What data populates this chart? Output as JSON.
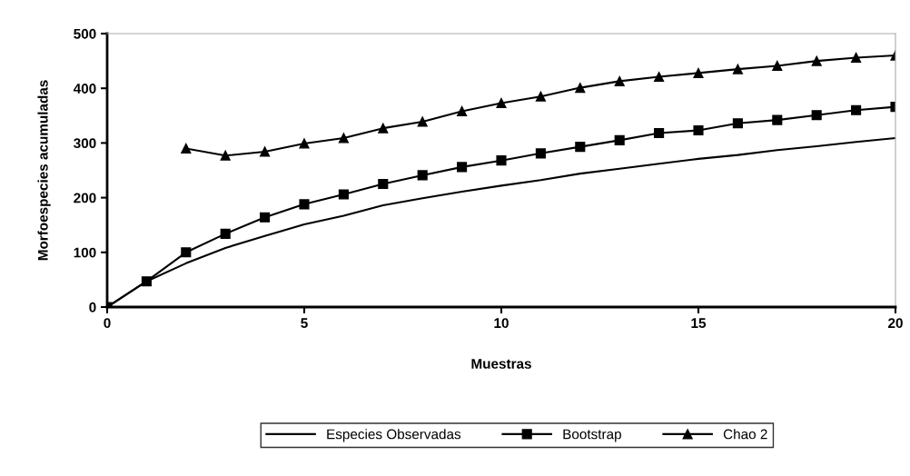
{
  "chart_data": {
    "type": "line",
    "xlabel": "Muestras",
    "ylabel": "Morfoespecies acumuladas",
    "x": [
      0,
      1,
      2,
      3,
      4,
      5,
      6,
      7,
      8,
      9,
      10,
      11,
      12,
      13,
      14,
      15,
      16,
      17,
      18,
      19,
      20
    ],
    "series": [
      {
        "name": "Especies Observadas",
        "color": "#000000",
        "marker": "none",
        "values": [
          0,
          47,
          80,
          108,
          130,
          151,
          167,
          186,
          199,
          211,
          222,
          232,
          244,
          253,
          262,
          271,
          278,
          287,
          294,
          302,
          309
        ]
      },
      {
        "name": "Bootstrap",
        "color": "#000000",
        "marker": "square",
        "values": [
          0,
          47,
          100,
          134,
          164,
          188,
          206,
          225,
          241,
          256,
          268,
          281,
          293,
          305,
          318,
          323,
          336,
          342,
          351,
          360,
          366
        ]
      },
      {
        "name": "Chao 2",
        "color": "#000000",
        "marker": "triangle",
        "values": [
          null,
          null,
          290,
          277,
          284,
          299,
          309,
          327,
          339,
          358,
          373,
          385,
          401,
          413,
          421,
          428,
          435,
          441,
          450,
          456,
          460
        ]
      }
    ],
    "xlim": [
      0,
      20
    ],
    "xticks": [
      0,
      5,
      10,
      15,
      20
    ],
    "ylim": [
      0,
      500
    ],
    "yticks": [
      0,
      100,
      200,
      300,
      400,
      500
    ],
    "grid": false,
    "legend": "bottom",
    "line_style": "solid"
  }
}
